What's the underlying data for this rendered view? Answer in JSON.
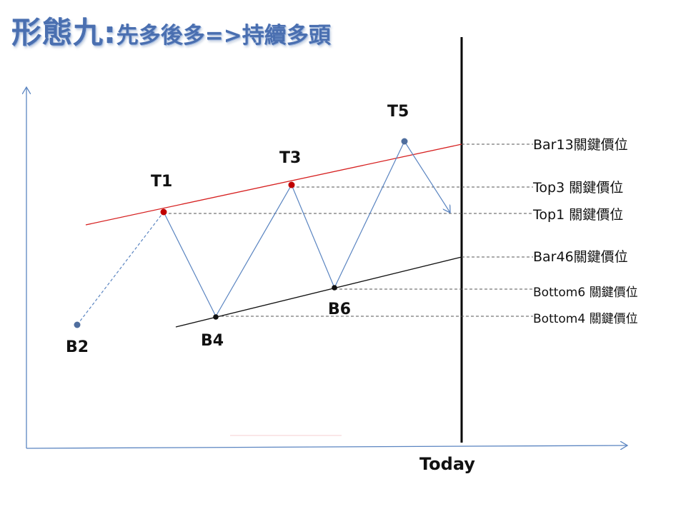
{
  "title": {
    "main": "形態九:",
    "subtitle": "先多後多=>持續多頭"
  },
  "points": {
    "T1": "T1",
    "T3": "T3",
    "T5": "T5",
    "B2": "B2",
    "B4": "B4",
    "B6": "B6"
  },
  "levels": {
    "bar13": "Bar13關鍵價位",
    "top3": "Top3  關鍵價位",
    "top1": "Top1  關鍵價位",
    "bar46": "Bar46關鍵價位",
    "bottom6": "Bottom6 關鍵價位",
    "bottom4": "Bottom4 關鍵價位"
  },
  "axis": {
    "today_label": "Today"
  },
  "colors": {
    "axis": "#5b85c1",
    "price_path": "#5b85c1",
    "resistance_line": "#d62020",
    "support_line": "#111111",
    "top_marker": "#c00000",
    "bottom_marker": "#111111",
    "endpoint_marker": "#4f6e9e"
  }
}
